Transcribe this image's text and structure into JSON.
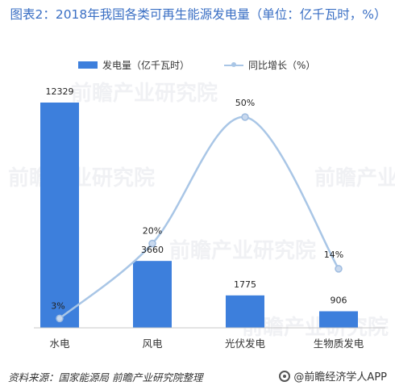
{
  "title": "图表2：2018年我国各类可再生能源发电量（单位：亿千瓦时，%）",
  "source": "资料来源：国家能源局 前瞻产业研究院整理",
  "brand": "@前瞻经济学人APP",
  "watermark": "前瞻产业研究院",
  "colors": {
    "bar": "#3d7fdc",
    "line": "#a9c6e6",
    "title": "#3a6fc4"
  },
  "chart_data": {
    "type": "bar",
    "categories": [
      "水电",
      "风电",
      "光伏发电",
      "生物质发电"
    ],
    "series": [
      {
        "name": "发电量（亿千瓦时）",
        "type": "bar",
        "values": [
          12329,
          3660,
          1775,
          906
        ],
        "labels": [
          "12329",
          "3660",
          "1775",
          "906"
        ]
      },
      {
        "name": "同比增长（%）",
        "type": "line",
        "values": [
          3,
          20,
          50,
          14
        ],
        "labels": [
          "3%",
          "20%",
          "50%",
          "14%"
        ]
      }
    ],
    "legend_position": "top",
    "grid": false
  }
}
